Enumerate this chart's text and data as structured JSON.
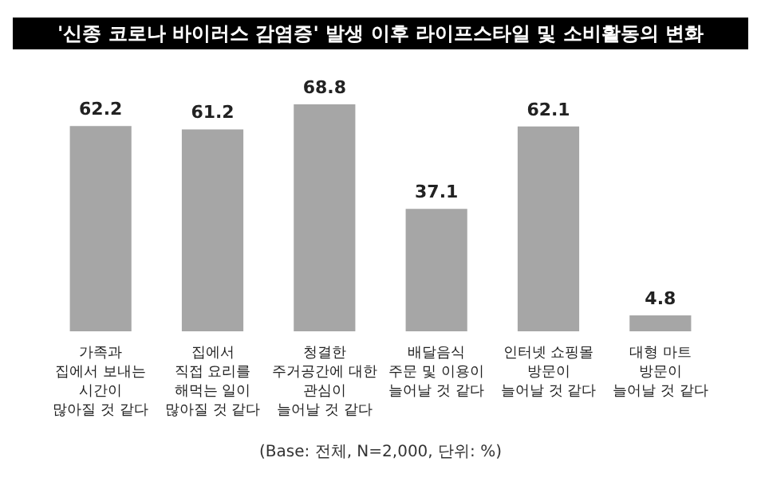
{
  "chart_data": {
    "type": "bar",
    "title": "'신종 코로나 바이러스 감염증' 발생 이후 라이프스타일 및 소비활동의 변화",
    "categories": [
      "가족과\n집에서 보내는\n시간이\n많아질 것 같다",
      "집에서\n직접 요리를\n해먹는 일이\n많아질 것 같다",
      "청결한\n주거공간에 대한\n관심이\n늘어날 것 같다",
      "배달음식\n주문 및 이용이\n늘어날 것 같다",
      "인터넷 쇼핑몰\n방문이\n늘어날 것 같다",
      "대형 마트\n방문이\n늘어날 것 같다"
    ],
    "values": [
      62.2,
      61.2,
      68.8,
      37.1,
      62.1,
      4.8
    ],
    "color": "#a6a6a6",
    "data_labels": true,
    "annotations": [
      "(Base: 전체, N=2,000, 단위: %)"
    ]
  }
}
